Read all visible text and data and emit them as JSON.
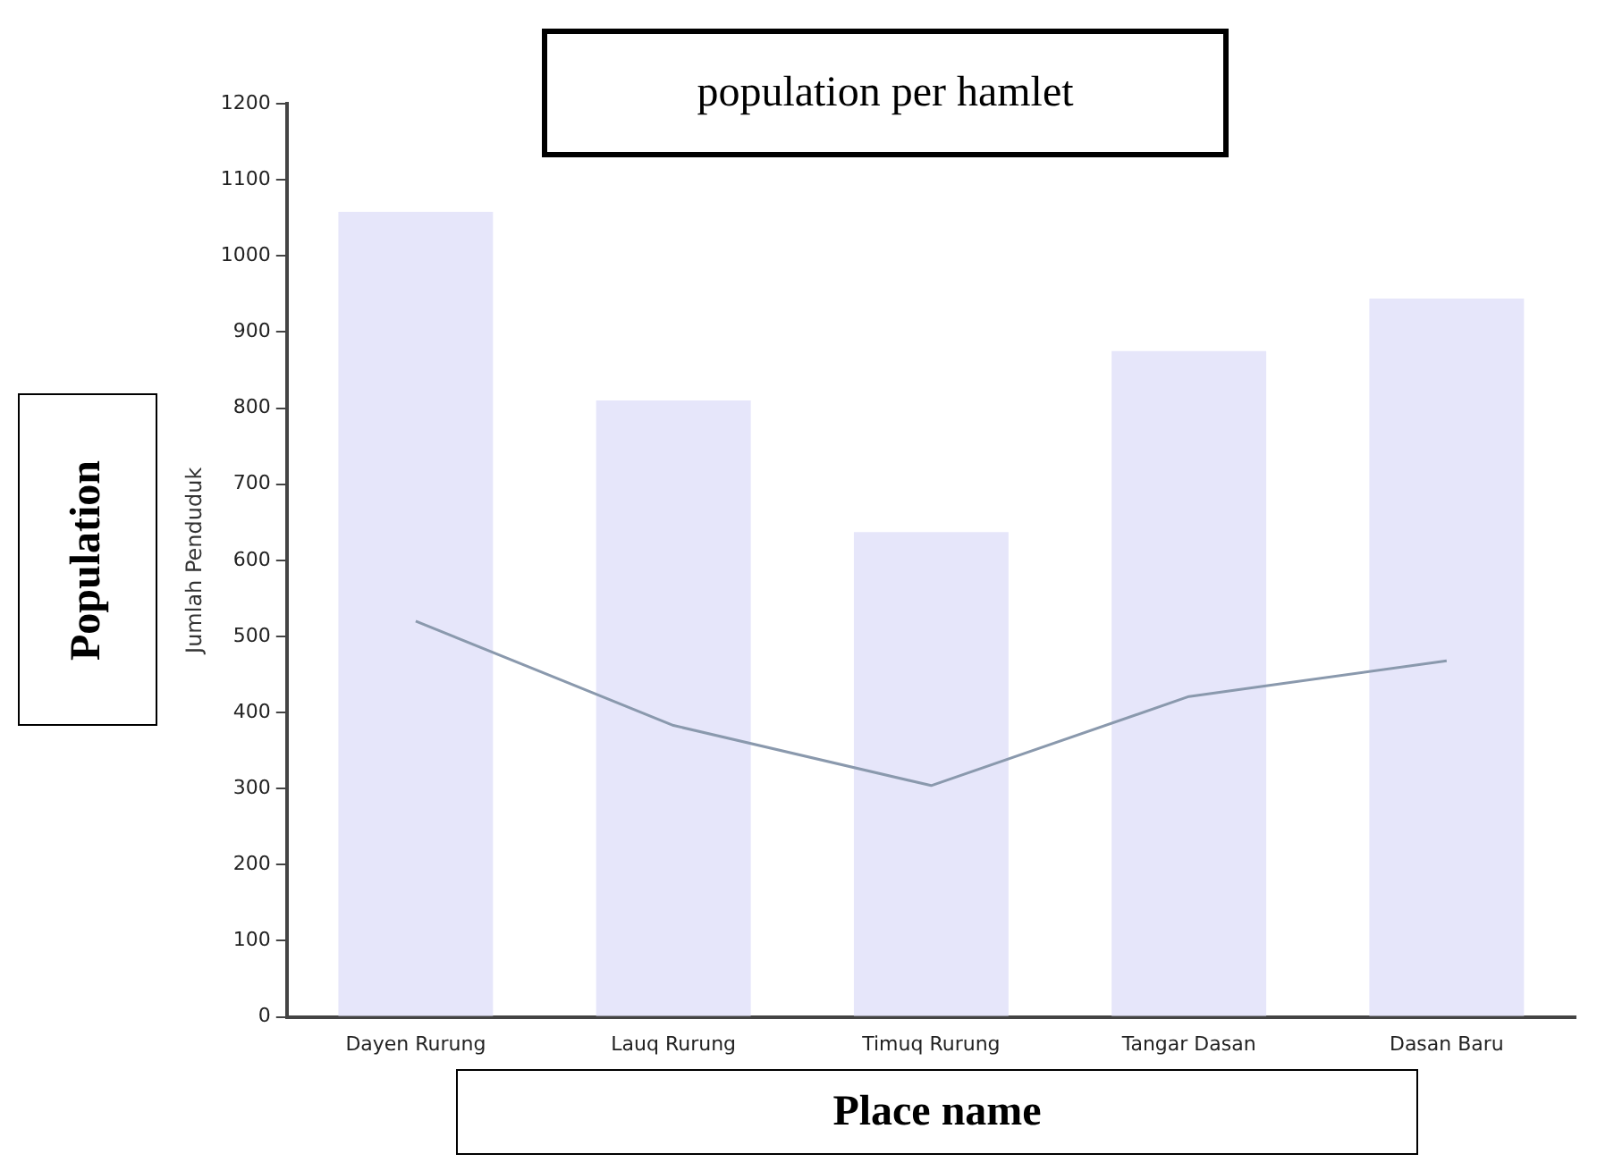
{
  "chart_data": {
    "type": "bar",
    "title": "population per hamlet",
    "xlabel": "Place name",
    "ylabel": "Jumlah Penduduk",
    "annotations": [
      "Population"
    ],
    "categories": [
      "Dayen Rurung",
      "Lauq Rurung",
      "Timuq Rurung",
      "Tangar Dasan",
      "Dasan Baru"
    ],
    "series": [
      {
        "color": "#e6e6fa",
        "values": [
          1058,
          810,
          637,
          875,
          944
        ]
      },
      {
        "type": "line",
        "color": "#8a99ad",
        "values": [
          520,
          383,
          304,
          421,
          468
        ]
      }
    ],
    "ylim": [
      0,
      1200
    ],
    "yticks": [
      0,
      100,
      200,
      300,
      400,
      500,
      600,
      700,
      800,
      900,
      1000,
      1100,
      1200
    ],
    "grid": false,
    "legend": false,
    "marker": "none",
    "line_style": "solid"
  }
}
